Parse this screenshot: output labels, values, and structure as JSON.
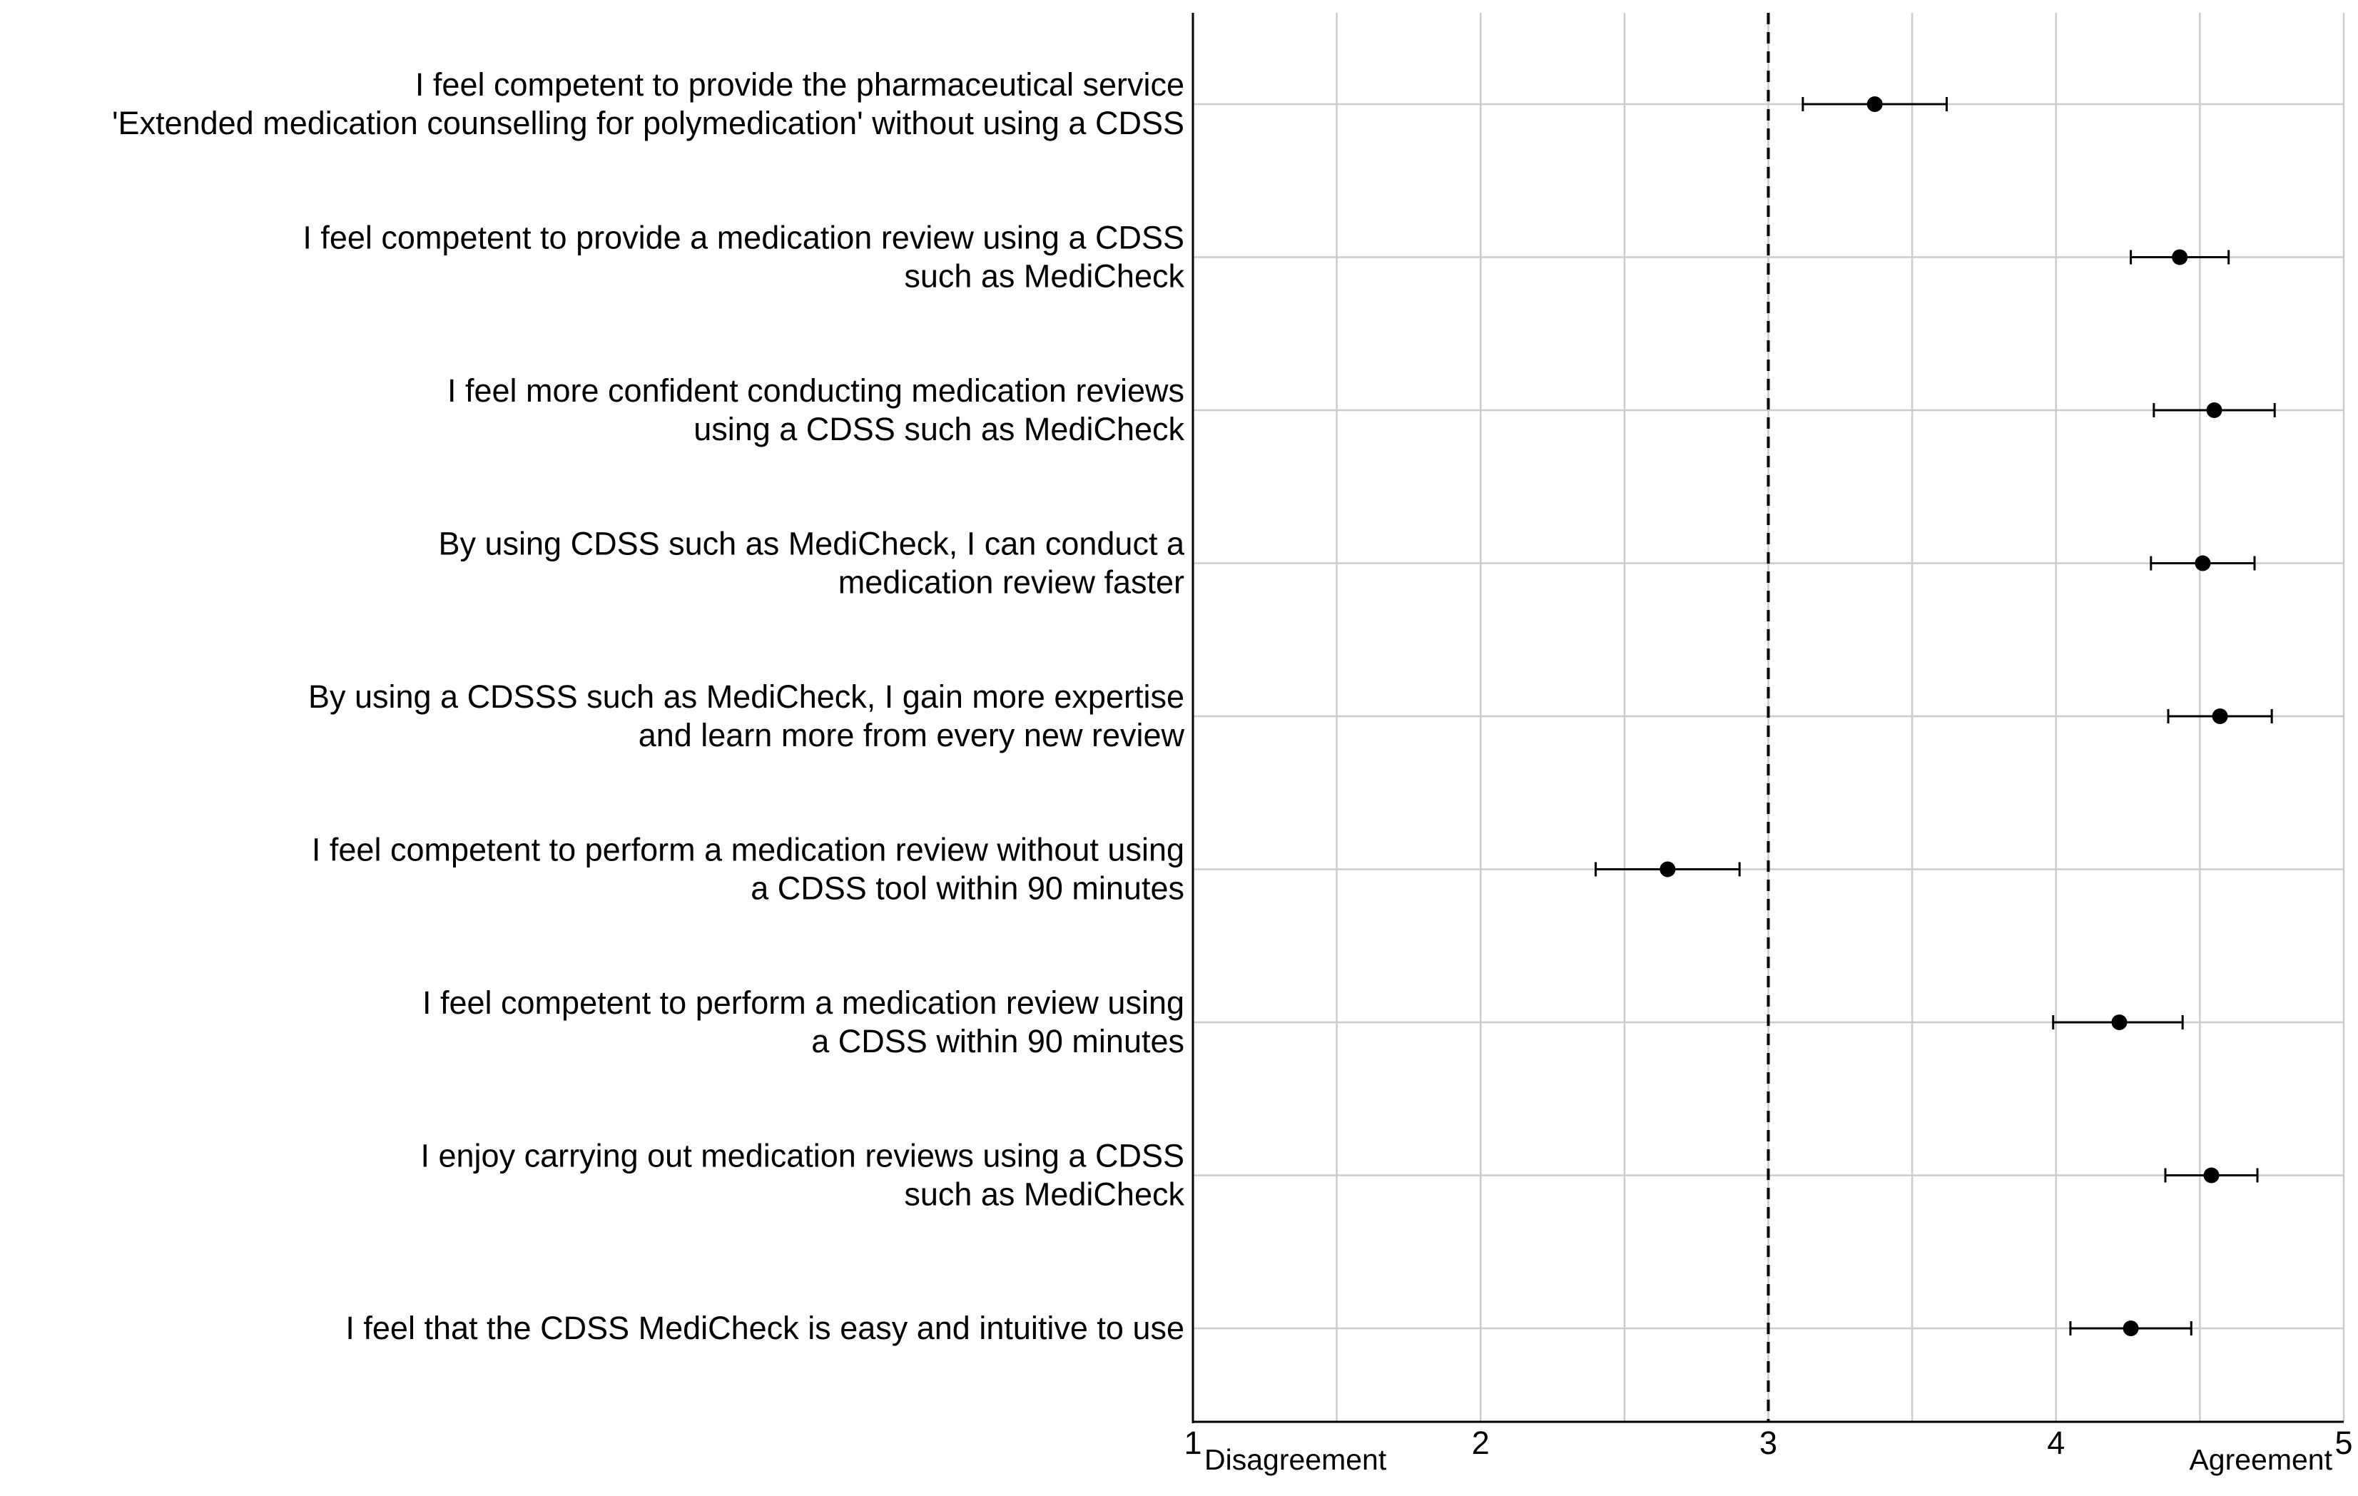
{
  "chart_data": {
    "type": "scatter",
    "title": "",
    "xlabel": "",
    "ylabel": "",
    "xlim": [
      1,
      5
    ],
    "xticks": [
      1,
      2,
      3,
      4,
      5
    ],
    "x_minor_gridlines": [
      1.5,
      2.5,
      3.5,
      4.5
    ],
    "reference_line": {
      "x": 3,
      "style": "dashed"
    },
    "end_labels": {
      "left": "Disagreement",
      "right": "Agreement"
    },
    "grid": true,
    "items": [
      {
        "label_lines": [
          "I feel competent to provide the pharmaceutical service",
          "'Extended medication counselling for polymedication' without using a CDSS"
        ],
        "mean": 3.37,
        "ci_low": 3.12,
        "ci_high": 3.62
      },
      {
        "label_lines": [
          "I feel competent to provide a medication review using a CDSS",
          "such as MediCheck"
        ],
        "mean": 4.43,
        "ci_low": 4.26,
        "ci_high": 4.6
      },
      {
        "label_lines": [
          "I feel more confident conducting medication reviews",
          "using a CDSS such as MediCheck"
        ],
        "mean": 4.55,
        "ci_low": 4.34,
        "ci_high": 4.76
      },
      {
        "label_lines": [
          "By using CDSS such as MediCheck, I can conduct a",
          "medication review faster"
        ],
        "mean": 4.51,
        "ci_low": 4.33,
        "ci_high": 4.69
      },
      {
        "label_lines": [
          "By using a CDSSS such as MediCheck, I gain more expertise",
          "and learn more from every new review"
        ],
        "mean": 4.57,
        "ci_low": 4.39,
        "ci_high": 4.75
      },
      {
        "label_lines": [
          "I feel competent to perform a medication review without using",
          "a CDSS tool within 90 minutes"
        ],
        "mean": 2.65,
        "ci_low": 2.4,
        "ci_high": 2.9
      },
      {
        "label_lines": [
          "I feel competent to perform a medication review using",
          "a CDSS within 90 minutes"
        ],
        "mean": 4.22,
        "ci_low": 3.99,
        "ci_high": 4.44
      },
      {
        "label_lines": [
          "I enjoy carrying out medication reviews using a CDSS",
          "such as MediCheck"
        ],
        "mean": 4.54,
        "ci_low": 4.38,
        "ci_high": 4.7
      },
      {
        "label_lines": [
          "I feel that the CDSS MediCheck is easy and intuitive to use"
        ],
        "mean": 4.26,
        "ci_low": 4.05,
        "ci_high": 4.47
      }
    ]
  }
}
